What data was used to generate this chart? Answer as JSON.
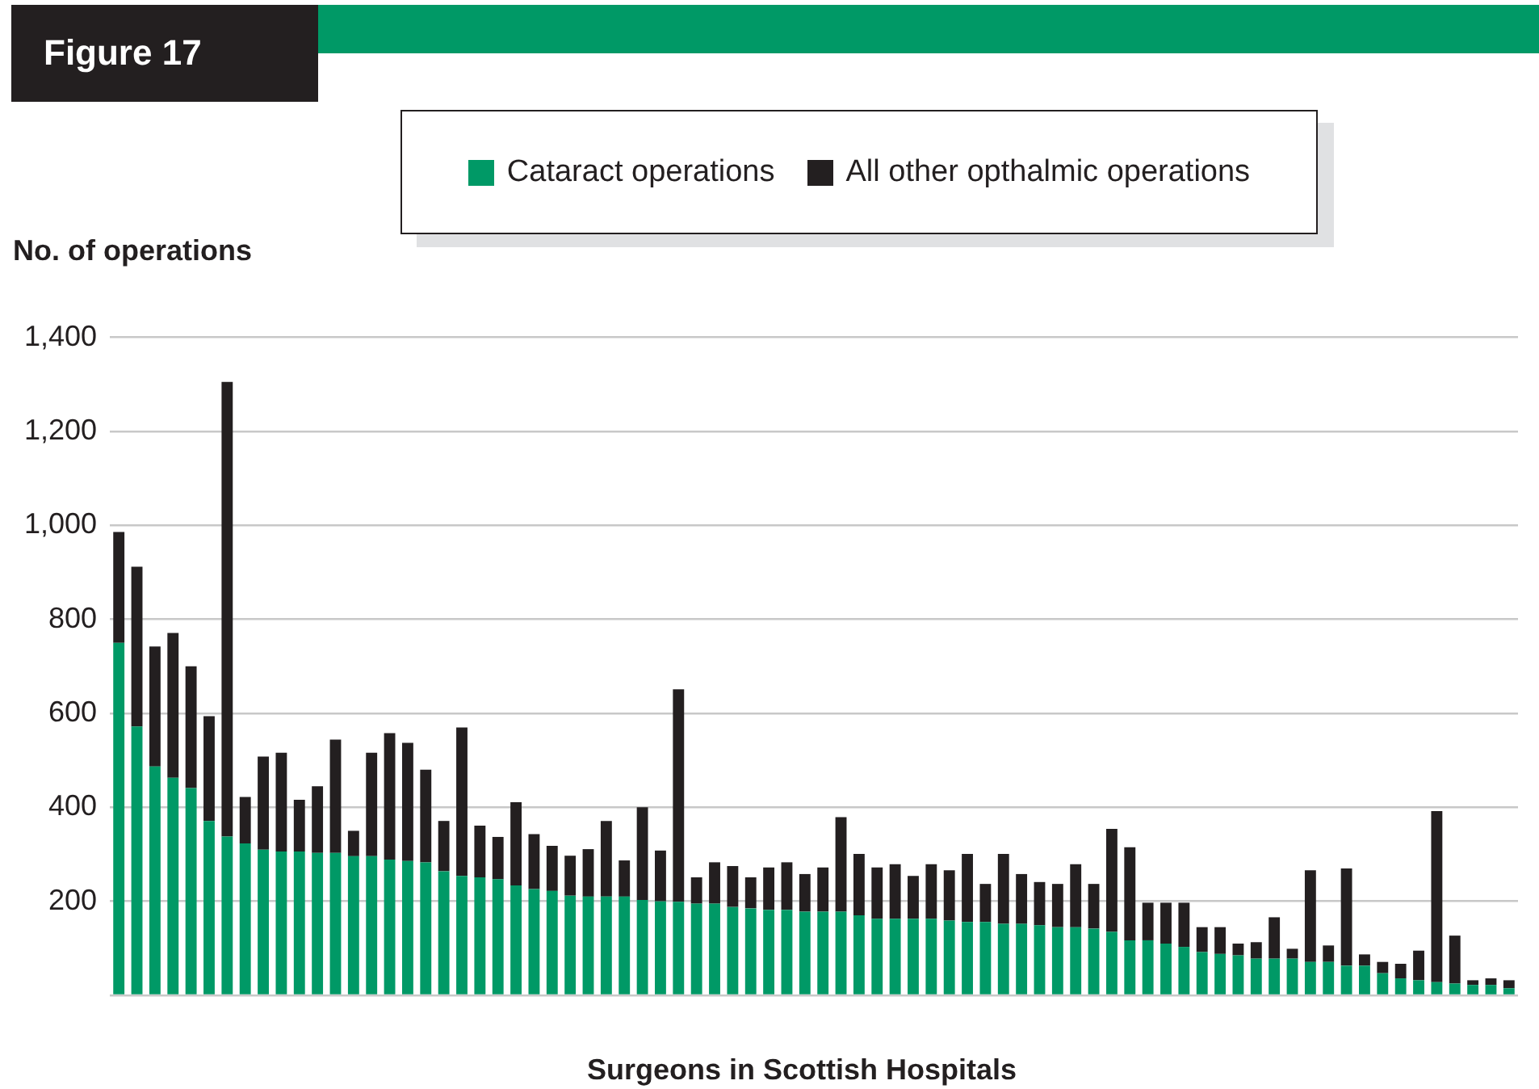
{
  "chart_data": {
    "type": "bar",
    "title": "Figure 17",
    "ylabel": "No. of operations",
    "xlabel": "Surgeons in Scottish Hospitals",
    "categories": [
      null,
      null,
      null,
      null,
      null,
      null,
      null,
      null,
      null,
      null,
      null,
      null,
      null,
      null,
      null,
      null,
      null,
      null,
      null,
      null,
      null,
      null,
      null,
      null,
      null,
      null,
      null,
      null,
      null,
      null,
      null,
      null,
      null,
      null,
      null,
      null,
      null,
      null,
      null,
      null,
      null,
      null,
      null,
      null,
      null,
      null,
      null,
      null,
      null,
      null,
      null,
      null,
      null,
      null,
      null,
      null,
      null,
      null,
      null,
      null,
      null,
      null,
      null,
      null,
      null,
      null,
      null,
      null,
      null,
      null,
      null,
      null,
      null,
      null,
      null,
      null,
      null,
      null
    ],
    "stacked": true,
    "series": [
      {
        "name": "Cataract operations",
        "color": "#009966",
        "values": [
          750,
          572,
          487,
          463,
          441,
          371,
          338,
          323,
          310,
          306,
          306,
          303,
          303,
          296,
          296,
          289,
          286,
          283,
          264,
          254,
          251,
          247,
          234,
          226,
          222,
          212,
          210,
          210,
          210,
          203,
          200,
          199,
          195,
          195,
          188,
          185,
          182,
          182,
          178,
          178,
          178,
          170,
          163,
          163,
          163,
          163,
          159,
          156,
          156,
          152,
          152,
          149,
          145,
          145,
          142,
          135,
          117,
          117,
          110,
          103,
          92,
          88,
          85,
          78,
          78,
          78,
          71,
          71,
          63,
          63,
          47,
          36,
          32,
          28,
          25,
          22,
          22,
          15
        ]
      },
      {
        "name": "All other opthalmic operations",
        "color": "#231f20",
        "values": [
          236,
          340,
          255,
          308,
          259,
          223,
          967,
          99,
          198,
          210,
          110,
          142,
          241,
          54,
          220,
          269,
          251,
          197,
          107,
          316,
          110,
          90,
          177,
          117,
          96,
          85,
          101,
          161,
          77,
          197,
          108,
          452,
          56,
          88,
          87,
          66,
          90,
          101,
          80,
          94,
          201,
          131,
          109,
          116,
          91,
          116,
          107,
          145,
          81,
          149,
          106,
          92,
          92,
          134,
          95,
          219,
          198,
          80,
          87,
          94,
          53,
          57,
          25,
          35,
          88,
          21,
          195,
          35,
          207,
          24,
          24,
          31,
          63,
          364,
          102,
          10,
          14,
          17
        ]
      }
    ],
    "ylim": [
      0,
      1400
    ],
    "yticks": [
      {
        "value": 0,
        "label": null
      },
      {
        "value": 200,
        "label": "200"
      },
      {
        "value": 400,
        "label": "400"
      },
      {
        "value": 600,
        "label": "600"
      },
      {
        "value": 800,
        "label": "800"
      },
      {
        "value": 1000,
        "label": "1,000"
      },
      {
        "value": 1200,
        "label": "1,200"
      },
      {
        "value": 1400,
        "label": "1,400"
      }
    ],
    "grid": "y",
    "legend": "top",
    "tick_labels": "y"
  }
}
